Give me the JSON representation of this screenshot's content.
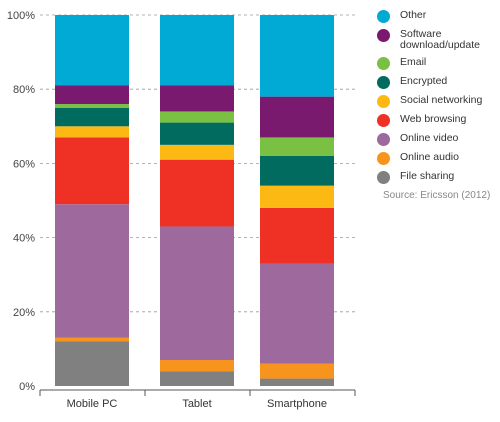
{
  "chart_data": {
    "type": "bar",
    "stacked": true,
    "categories": [
      "Mobile PC",
      "Tablet",
      "Smartphone"
    ],
    "ylim": [
      0,
      100
    ],
    "yticks": [
      0,
      20,
      40,
      60,
      80,
      100
    ],
    "ytick_labels": [
      "0%",
      "20%",
      "40%",
      "60%",
      "80%",
      "100%"
    ],
    "grid": true,
    "legend_position": "right",
    "series": [
      {
        "name": "File sharing",
        "color": "#808080",
        "values": [
          12,
          4,
          2
        ]
      },
      {
        "name": "Online audio",
        "color": "#f7941d",
        "values": [
          1,
          3,
          4
        ]
      },
      {
        "name": "Online video",
        "color": "#9e6a9e",
        "values": [
          36,
          36,
          27
        ]
      },
      {
        "name": "Web browsing",
        "color": "#ee3124",
        "values": [
          18,
          18,
          15
        ]
      },
      {
        "name": "Social networking",
        "color": "#fdb913",
        "values": [
          3,
          4,
          6
        ]
      },
      {
        "name": "Encrypted",
        "color": "#006b5e",
        "values": [
          5,
          6,
          8
        ]
      },
      {
        "name": "Email",
        "color": "#7ac143",
        "values": [
          1,
          3,
          5
        ]
      },
      {
        "name": "Software download/update",
        "color": "#7a1a6e",
        "values": [
          5,
          7,
          11
        ]
      },
      {
        "name": "Other",
        "color": "#00aad5",
        "values": [
          19,
          19,
          22
        ]
      }
    ]
  },
  "source": "Source: Ericsson (2012)"
}
